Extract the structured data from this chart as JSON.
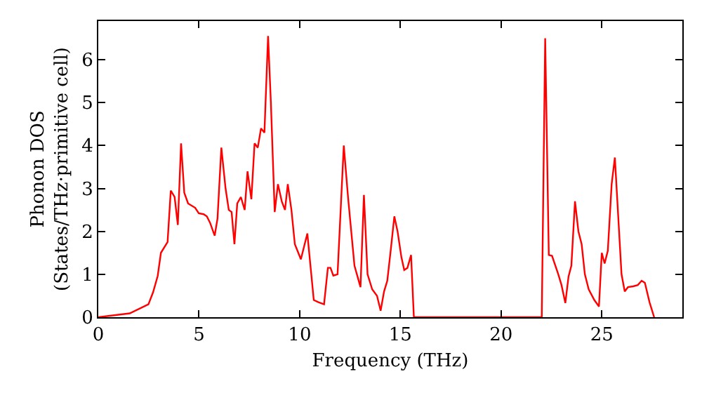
{
  "chart_data": {
    "type": "line",
    "xlabel": "Frequency (THz)",
    "ylabel": "Phonon DOS\n(States/THz·primitive cell)",
    "xlim": [
      0,
      29
    ],
    "ylim": [
      0,
      6.9
    ],
    "xticks": [
      0,
      5,
      10,
      15,
      20,
      25
    ],
    "yticks": [
      0,
      1,
      2,
      3,
      4,
      5,
      6
    ],
    "marker": "none",
    "line_style": "solid",
    "series": [
      {
        "color": "#ff0000",
        "x": [
          0,
          1.56,
          2.49,
          2.72,
          2.95,
          3.11,
          3.44,
          3.6,
          3.79,
          3.95,
          4.11,
          4.27,
          4.46,
          4.81,
          4.99,
          5.23,
          5.39,
          5.55,
          5.78,
          5.92,
          6.11,
          6.32,
          6.48,
          6.62,
          6.76,
          6.9,
          7.08,
          7.27,
          7.41,
          7.6,
          7.76,
          7.92,
          8.08,
          8.25,
          8.43,
          8.57,
          8.76,
          8.92,
          9.11,
          9.27,
          9.41,
          9.59,
          9.76,
          10.06,
          10.38,
          10.7,
          10.93,
          11.21,
          11.4,
          11.53,
          11.67,
          11.88,
          12.19,
          12.4,
          12.56,
          12.72,
          13.02,
          13.19,
          13.37,
          13.6,
          13.84,
          14.02,
          14.19,
          14.35,
          14.53,
          14.7,
          14.86,
          15.05,
          15.19,
          15.35,
          15.53,
          15.67,
          22.02,
          22.19,
          22.37,
          22.53,
          22.84,
          23.0,
          23.19,
          23.35,
          23.49,
          23.67,
          23.84,
          24.0,
          24.16,
          24.35,
          24.63,
          24.86,
          25.0,
          25.14,
          25.3,
          25.49,
          25.65,
          25.81,
          25.98,
          26.14,
          26.3,
          26.56,
          26.79,
          26.98,
          27.14,
          27.37,
          27.6
        ],
        "values": [
          0,
          0.09,
          0.3,
          0.58,
          0.96,
          1.5,
          1.75,
          2.95,
          2.8,
          2.15,
          4.05,
          2.9,
          2.65,
          2.55,
          2.42,
          2.4,
          2.35,
          2.2,
          1.9,
          2.3,
          3.95,
          3.0,
          2.5,
          2.45,
          1.7,
          2.65,
          2.8,
          2.5,
          3.4,
          2.75,
          4.05,
          3.95,
          4.4,
          4.3,
          6.55,
          5.0,
          2.45,
          3.1,
          2.7,
          2.5,
          3.1,
          2.5,
          1.7,
          1.35,
          1.95,
          0.4,
          0.35,
          0.3,
          1.15,
          1.15,
          0.97,
          1.0,
          4.0,
          2.8,
          2.0,
          1.2,
          0.7,
          2.85,
          1.0,
          0.65,
          0.5,
          0.15,
          0.6,
          0.85,
          1.6,
          2.35,
          2.0,
          1.4,
          1.1,
          1.15,
          1.45,
          0,
          0,
          6.5,
          1.45,
          1.43,
          1.0,
          0.75,
          0.33,
          0.95,
          1.2,
          2.7,
          2.0,
          1.7,
          1.0,
          0.65,
          0.4,
          0.25,
          1.5,
          1.25,
          1.55,
          3.1,
          3.72,
          2.4,
          1.0,
          0.6,
          0.7,
          0.72,
          0.75,
          0.85,
          0.8,
          0.35,
          0
        ]
      }
    ]
  }
}
